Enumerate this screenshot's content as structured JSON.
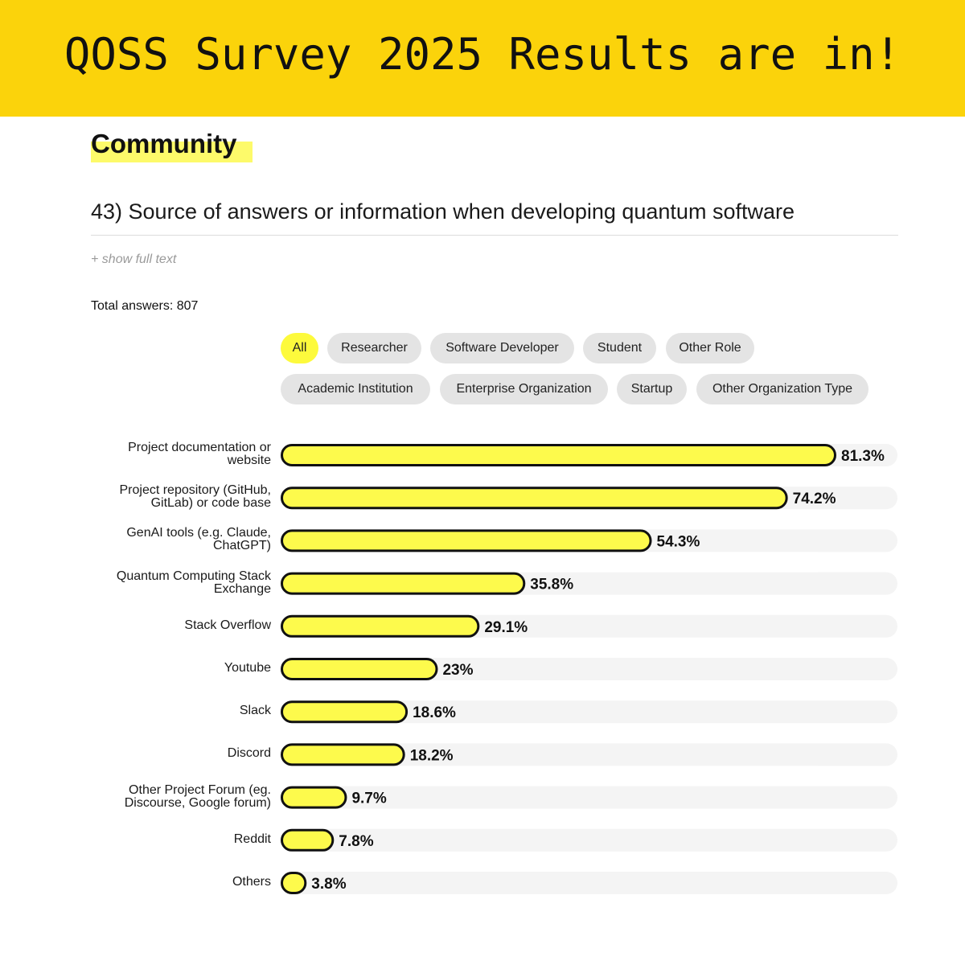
{
  "banner": {
    "title": "QOSS Survey 2025 Results are in!"
  },
  "section": {
    "title": "Community"
  },
  "question": {
    "title": "43) Source of answers or information when developing quantum software"
  },
  "show_full_text": "+ show full text",
  "total_answers": "Total answers: 807",
  "filters": {
    "row1": [
      "All",
      "Researcher",
      "Software Developer",
      "Student",
      "Other Role"
    ],
    "row2": [
      "Academic Institution",
      "Enterprise Organization",
      "Startup",
      "Other Organization Type"
    ],
    "active": "All"
  },
  "colors": {
    "banner": "#fbd30b",
    "bar_fill": "#fdfa4c",
    "bar_outline": "#111111",
    "track": "#f4f4f4",
    "chip": "#e4e4e4",
    "chip_active": "#fdfa3c"
  },
  "chart_data": {
    "type": "bar",
    "orientation": "horizontal",
    "categories": [
      "Project documentation or website",
      "Project repository (GitHub, GitLab) or code base",
      "GenAI tools (e.g. Claude, ChatGPT)",
      "Quantum Computing Stack Exchange",
      "Stack Overflow",
      "Youtube",
      "Slack",
      "Discord",
      "Other Project Forum (eg. Discourse, Google forum)",
      "Reddit",
      "Others"
    ],
    "label_lines": [
      [
        "Project documentation or",
        "website"
      ],
      [
        "Project repository (GitHub,",
        "GitLab) or code base"
      ],
      [
        "GenAI tools (e.g. Claude,",
        "ChatGPT)"
      ],
      [
        "Quantum Computing Stack",
        "Exchange"
      ],
      [
        "Stack Overflow"
      ],
      [
        "Youtube"
      ],
      [
        "Slack"
      ],
      [
        "Discord"
      ],
      [
        "Other Project Forum (eg.",
        "Discourse, Google forum)"
      ],
      [
        "Reddit"
      ],
      [
        "Others"
      ]
    ],
    "values": [
      81.3,
      74.2,
      54.3,
      35.8,
      29.1,
      23,
      18.6,
      18.2,
      9.7,
      7.8,
      3.8
    ],
    "value_labels": [
      "81.3%",
      "74.2%",
      "54.3%",
      "35.8%",
      "29.1%",
      "23%",
      "18.6%",
      "18.2%",
      "9.7%",
      "7.8%",
      "3.8%"
    ],
    "xlim": [
      0,
      100
    ],
    "unit": "%"
  }
}
